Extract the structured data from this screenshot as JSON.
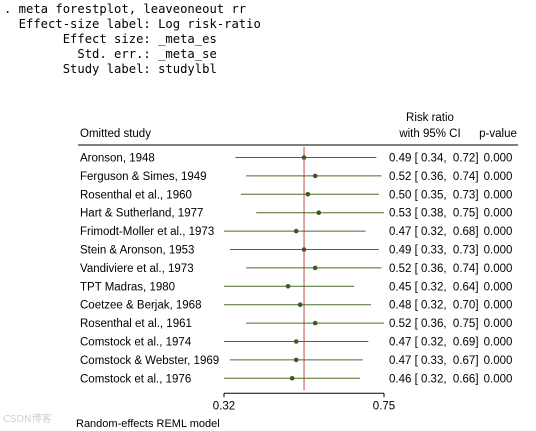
{
  "console": {
    "lines": [
      ". meta forestplot, leaveoneout rr",
      "  Effect-size label: Log risk-ratio",
      "        Effect size: _meta_es",
      "          Std. err.: _meta_se",
      "        Study label: studylbl"
    ]
  },
  "chart_data": {
    "type": "forest",
    "column_headers": {
      "study": "Omitted study",
      "rr_line1": "Risk ratio",
      "rr_line2": "with 95% CI",
      "pvalue": "p-value"
    },
    "rows": [
      {
        "study": "Aronson, 1948",
        "rr": 0.49,
        "lo": 0.34,
        "hi": 0.72,
        "ci_text": "0.49 [ 0.34,  0.72]",
        "p": "0.000"
      },
      {
        "study": "Ferguson & Simes, 1949",
        "rr": 0.52,
        "lo": 0.36,
        "hi": 0.74,
        "ci_text": "0.52 [ 0.36,  0.74]",
        "p": "0.000"
      },
      {
        "study": "Rosenthal et al., 1960",
        "rr": 0.5,
        "lo": 0.35,
        "hi": 0.73,
        "ci_text": "0.50 [ 0.35,  0.73]",
        "p": "0.000"
      },
      {
        "study": "Hart & Sutherland, 1977",
        "rr": 0.53,
        "lo": 0.38,
        "hi": 0.75,
        "ci_text": "0.53 [ 0.38,  0.75]",
        "p": "0.000"
      },
      {
        "study": "Frimodt-Moller et al., 1973",
        "rr": 0.47,
        "lo": 0.32,
        "hi": 0.68,
        "ci_text": "0.47 [ 0.32,  0.68]",
        "p": "0.000"
      },
      {
        "study": "Stein & Aronson, 1953",
        "rr": 0.49,
        "lo": 0.33,
        "hi": 0.73,
        "ci_text": "0.49 [ 0.33,  0.73]",
        "p": "0.000"
      },
      {
        "study": "Vandiviere et al., 1973",
        "rr": 0.52,
        "lo": 0.36,
        "hi": 0.74,
        "ci_text": "0.52 [ 0.36,  0.74]",
        "p": "0.000"
      },
      {
        "study": "TPT Madras, 1980",
        "rr": 0.45,
        "lo": 0.32,
        "hi": 0.64,
        "ci_text": "0.45 [ 0.32,  0.64]",
        "p": "0.000"
      },
      {
        "study": "Coetzee & Berjak, 1968",
        "rr": 0.48,
        "lo": 0.32,
        "hi": 0.7,
        "ci_text": "0.48 [ 0.32,  0.70]",
        "p": "0.000"
      },
      {
        "study": "Rosenthal et al., 1961",
        "rr": 0.52,
        "lo": 0.36,
        "hi": 0.75,
        "ci_text": "0.52 [ 0.36,  0.75]",
        "p": "0.000"
      },
      {
        "study": "Comstock et al., 1974",
        "rr": 0.47,
        "lo": 0.32,
        "hi": 0.69,
        "ci_text": "0.47 [ 0.32,  0.69]",
        "p": "0.000"
      },
      {
        "study": "Comstock & Webster, 1969",
        "rr": 0.47,
        "lo": 0.33,
        "hi": 0.67,
        "ci_text": "0.47 [ 0.33,  0.67]",
        "p": "0.000"
      },
      {
        "study": "Comstock et al., 1976",
        "rr": 0.46,
        "lo": 0.32,
        "hi": 0.66,
        "ci_text": "0.46 [ 0.32,  0.66]",
        "p": "0.000"
      }
    ],
    "reference_value": 0.49,
    "x_scale": "log",
    "xlim": [
      0.32,
      0.75
    ],
    "x_ticks": [
      0.32,
      0.75
    ],
    "x_tick_labels": [
      "0.32",
      "0.75"
    ],
    "footnote": "Random-effects REML model",
    "colors": {
      "ci_line": "#4d6b2a",
      "point": "#3e5a1f",
      "reference_line": "#c24a4a",
      "rule": "#000000"
    }
  },
  "watermark": "CSDN博客"
}
